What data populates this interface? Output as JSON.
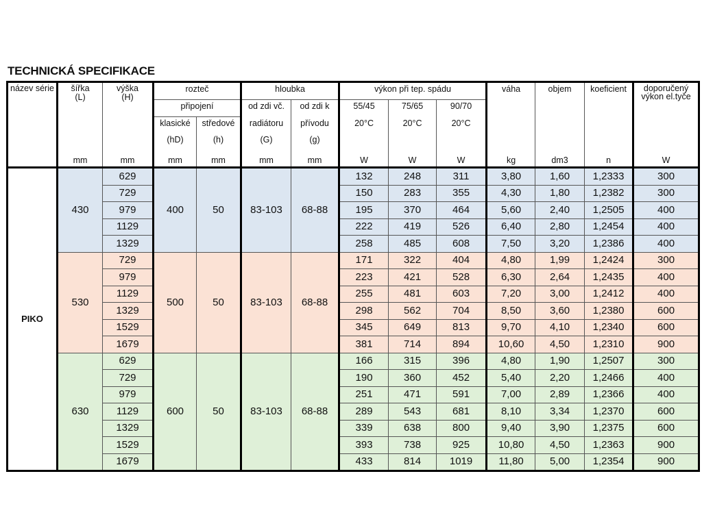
{
  "title": "TECHNICKÁ SPECIFIKACE",
  "headers": {
    "nazev": "název série",
    "sirka": "šířka",
    "sirka_sym": "(L)",
    "vyska": "výška",
    "vyska_sym": "(H)",
    "roztec": "rozteč",
    "pripojeni": "připojení",
    "klasicke": "klasické",
    "klasicke_sym": "(hD)",
    "stredove": "středové",
    "stredove_sym": "(h)",
    "hloubka": "hloubka",
    "od_zdi_vc": "od zdi  vč.",
    "radiatoru": "radiátoru",
    "od_zdi_vc_sym": "(G)",
    "od_zdi_k": "od zdi  k",
    "privodu": "přívodu",
    "od_zdi_k_sym": "(g)",
    "vykon": "výkon při tep.  spádu",
    "t1": "55/45",
    "t2": "75/65",
    "t3": "90/70",
    "t_room": "20°C",
    "vaha": "váha",
    "objem": "objem",
    "koeficient": "koeficient",
    "doporuceny": "doporučený výkon el.tyče"
  },
  "units": [
    "",
    "mm",
    "mm",
    "mm",
    "mm",
    "mm",
    "mm",
    "W",
    "W",
    "W",
    "kg",
    "dm3",
    "n",
    "W"
  ],
  "series": "PIKO",
  "colors": {
    "blue": "#dce6f1",
    "pink": "#fbe2d5",
    "green": "#dff0d8"
  },
  "groups": [
    {
      "color": "blue",
      "width": "430",
      "klasicke": "400",
      "stredove": "50",
      "od_zdi_vc": "83-103",
      "od_zdi_k": "68-88",
      "rows": [
        [
          "629",
          "132",
          "248",
          "311",
          "3,80",
          "1,60",
          "1,2333",
          "300"
        ],
        [
          "729",
          "150",
          "283",
          "355",
          "4,30",
          "1,80",
          "1,2382",
          "300"
        ],
        [
          "979",
          "195",
          "370",
          "464",
          "5,60",
          "2,40",
          "1,2505",
          "400"
        ],
        [
          "1129",
          "222",
          "419",
          "526",
          "6,40",
          "2,80",
          "1,2454",
          "400"
        ],
        [
          "1329",
          "258",
          "485",
          "608",
          "7,50",
          "3,20",
          "1,2386",
          "400"
        ]
      ]
    },
    {
      "color": "pink",
      "width": "530",
      "klasicke": "500",
      "stredove": "50",
      "od_zdi_vc": "83-103",
      "od_zdi_k": "68-88",
      "rows": [
        [
          "729",
          "171",
          "322",
          "404",
          "4,80",
          "1,99",
          "1,2424",
          "300"
        ],
        [
          "979",
          "223",
          "421",
          "528",
          "6,30",
          "2,64",
          "1,2435",
          "400"
        ],
        [
          "1129",
          "255",
          "481",
          "603",
          "7,20",
          "3,00",
          "1,2412",
          "400"
        ],
        [
          "1329",
          "298",
          "562",
          "704",
          "8,50",
          "3,60",
          "1,2380",
          "600"
        ],
        [
          "1529",
          "345",
          "649",
          "813",
          "9,70",
          "4,10",
          "1,2340",
          "600"
        ],
        [
          "1679",
          "381",
          "714",
          "894",
          "10,60",
          "4,50",
          "1,2310",
          "900"
        ]
      ]
    },
    {
      "color": "green",
      "width": "630",
      "klasicke": "600",
      "stredove": "50",
      "od_zdi_vc": "83-103",
      "od_zdi_k": "68-88",
      "rows": [
        [
          "629",
          "166",
          "315",
          "396",
          "4,80",
          "1,90",
          "1,2507",
          "300"
        ],
        [
          "729",
          "190",
          "360",
          "452",
          "5,40",
          "2,20",
          "1,2466",
          "400"
        ],
        [
          "979",
          "251",
          "471",
          "591",
          "7,00",
          "2,89",
          "1,2366",
          "400"
        ],
        [
          "1129",
          "289",
          "543",
          "681",
          "8,10",
          "3,34",
          "1,2370",
          "600"
        ],
        [
          "1329",
          "339",
          "638",
          "800",
          "9,40",
          "3,90",
          "1,2375",
          "600"
        ],
        [
          "1529",
          "393",
          "738",
          "925",
          "10,80",
          "4,50",
          "1,2363",
          "900"
        ],
        [
          "1679",
          "433",
          "814",
          "1019",
          "11,80",
          "5,00",
          "1,2354",
          "900"
        ]
      ]
    }
  ]
}
